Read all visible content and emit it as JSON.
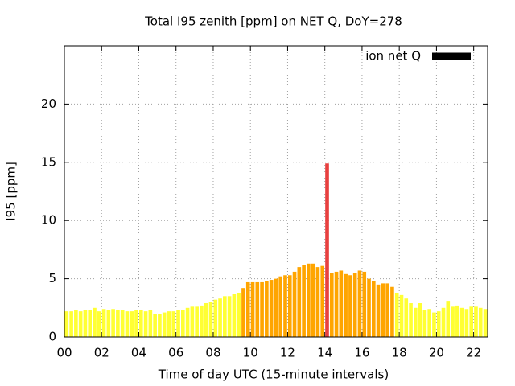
{
  "chart_data": {
    "type": "bar",
    "title": "Total I95 zenith [ppm] on NET Q, DoY=278",
    "x_label": "Time of day UTC (15-minute intervals)",
    "y_label": "I95 [ppm]",
    "x": [
      0,
      0.25,
      0.5,
      0.75,
      1,
      1.25,
      1.5,
      1.75,
      2,
      2.25,
      2.5,
      2.75,
      3,
      3.25,
      3.5,
      3.75,
      4,
      4.25,
      4.5,
      4.75,
      5,
      5.25,
      5.5,
      5.75,
      6,
      6.25,
      6.5,
      6.75,
      7,
      7.25,
      7.5,
      7.75,
      8,
      8.25,
      8.5,
      8.75,
      9,
      9.25,
      9.5,
      9.75,
      10,
      10.25,
      10.5,
      10.75,
      11,
      11.25,
      11.5,
      11.75,
      12,
      12.25,
      12.5,
      12.75,
      13,
      13.25,
      13.5,
      13.75,
      14,
      14.25,
      14.5,
      14.75,
      15,
      15.25,
      15.5,
      15.75,
      16,
      16.25,
      16.5,
      16.75,
      17,
      17.25,
      17.5,
      17.75,
      18,
      18.25,
      18.5,
      18.75,
      19,
      19.25,
      19.5,
      19.75,
      20,
      20.25,
      20.5,
      20.75,
      21,
      21.25,
      21.5,
      21.75,
      22,
      22.25,
      22.5
    ],
    "series": [
      {
        "name": "ion net Q",
        "color": "#000000",
        "values": [
          2.2,
          2.2,
          2.3,
          2.2,
          2.3,
          2.3,
          2.5,
          2.2,
          2.4,
          2.3,
          2.4,
          2.3,
          2.3,
          2.2,
          2.2,
          2.3,
          2.3,
          2.2,
          2.3,
          2.0,
          2.0,
          2.1,
          2.2,
          2.2,
          2.3,
          2.3,
          2.5,
          2.6,
          2.6,
          2.7,
          2.9,
          3.0,
          3.2,
          3.3,
          3.5,
          3.5,
          3.7,
          3.8,
          4.2,
          4.7,
          4.7,
          4.7,
          4.7,
          4.8,
          4.9,
          5.0,
          5.2,
          5.3,
          5.3,
          5.6,
          6.0,
          6.2,
          6.3,
          6.3,
          6.0,
          6.1,
          14.9,
          5.5,
          5.6,
          5.7,
          5.4,
          5.3,
          5.5,
          5.7,
          5.6,
          5.0,
          4.8,
          4.5,
          4.6,
          4.6,
          4.3,
          3.8,
          3.6,
          3.3,
          2.9,
          2.5,
          2.9,
          2.3,
          2.4,
          2.1,
          2.2,
          2.5,
          3.1,
          2.6,
          2.7,
          2.5,
          2.4,
          2.6,
          2.6,
          2.5,
          2.4
        ],
        "bar_colors": [
          "#ffff33",
          "#ffff33",
          "#ffff33",
          "#ffff33",
          "#ffff33",
          "#ffff33",
          "#ffff33",
          "#ffff33",
          "#ffff33",
          "#ffff33",
          "#ffff33",
          "#ffff33",
          "#ffff33",
          "#ffff33",
          "#ffff33",
          "#ffff33",
          "#ffff33",
          "#ffff33",
          "#ffff33",
          "#ffff33",
          "#ffff33",
          "#ffff33",
          "#ffff33",
          "#ffff33",
          "#ffff33",
          "#ffff33",
          "#ffff33",
          "#ffff33",
          "#ffff33",
          "#ffff33",
          "#ffff33",
          "#ffff33",
          "#ffff33",
          "#ffff33",
          "#ffff33",
          "#ffff33",
          "#ffff33",
          "#ffff33",
          "#ffa500",
          "#ffa500",
          "#ffa500",
          "#ffa500",
          "#ffa500",
          "#ffa500",
          "#ffa500",
          "#ffa500",
          "#ffa500",
          "#ffa500",
          "#ffa500",
          "#ffa500",
          "#ffa500",
          "#ffa500",
          "#ffa500",
          "#ffa500",
          "#ffa500",
          "#ffa500",
          "#e8403f",
          "#ffa500",
          "#ffa500",
          "#ffa500",
          "#ffa500",
          "#ffa500",
          "#ffa500",
          "#ffa500",
          "#ffa500",
          "#ffa500",
          "#ffa500",
          "#ffa500",
          "#ffa500",
          "#ffa500",
          "#ffa500",
          "#ffff33",
          "#ffff33",
          "#ffff33",
          "#ffff33",
          "#ffff33",
          "#ffff33",
          "#ffff33",
          "#ffff33",
          "#ffff33",
          "#ffff33",
          "#ffff33",
          "#ffff33",
          "#ffff33",
          "#ffff33",
          "#ffff33",
          "#ffff33",
          "#ffff33",
          "#ffff33",
          "#ffff33",
          "#ffff33"
        ]
      }
    ],
    "xlim": [
      0,
      22.75
    ],
    "ylim": [
      0,
      25
    ],
    "xticks": [
      {
        "value": 0,
        "label": "00"
      },
      {
        "value": 2,
        "label": "02"
      },
      {
        "value": 4,
        "label": "04"
      },
      {
        "value": 6,
        "label": "06"
      },
      {
        "value": 8,
        "label": "08"
      },
      10,
      12,
      14,
      16,
      18,
      20,
      22
    ],
    "yticks": [
      0,
      5,
      10,
      15,
      20
    ],
    "grid": true,
    "legend": "top right"
  }
}
